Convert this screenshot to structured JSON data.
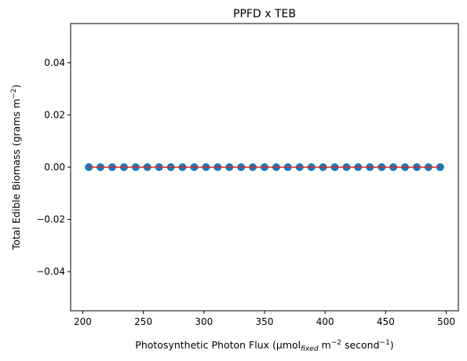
{
  "chart_data": {
    "type": "scatter",
    "title": "PPFD x TEB",
    "xlabel": {
      "pre": "Photosynthetic Photon Flux (µmol",
      "sub": "fixed",
      "mid": " m",
      "sup1": "−2",
      "mid2": " second",
      "sup2": "−1",
      "post": ")"
    },
    "ylabel": {
      "pre": "Total Edible Biomass (grams m",
      "sup": "−2",
      "post": ")"
    },
    "xlim": [
      190,
      510
    ],
    "ylim": [
      -0.055,
      0.055
    ],
    "xticks": [
      200,
      250,
      300,
      350,
      400,
      450,
      500
    ],
    "yticks": [
      -0.04,
      -0.02,
      0.0,
      0.02,
      0.04
    ],
    "ytick_labels": [
      "−0.04",
      "−0.02",
      "0.00",
      "0.02",
      "0.04"
    ],
    "grid": false,
    "series": [
      {
        "kind": "scatter",
        "color": "#1f77b4",
        "x": [
          205,
          214.6,
          224.3,
          234,
          243.7,
          253.3,
          263,
          272.7,
          282.3,
          292,
          301.7,
          311.3,
          321,
          330.7,
          340.3,
          350,
          359.7,
          369.3,
          379,
          388.7,
          398.3,
          408,
          417.7,
          427.3,
          437,
          446.7,
          456.3,
          466,
          475.7,
          485.3,
          495
        ],
        "y": [
          0,
          0,
          0,
          0,
          0,
          0,
          0,
          0,
          0,
          0,
          0,
          0,
          0,
          0,
          0,
          0,
          0,
          0,
          0,
          0,
          0,
          0,
          0,
          0,
          0,
          0,
          0,
          0,
          0,
          0,
          0
        ]
      },
      {
        "kind": "line",
        "color": "#d62728",
        "x": [
          205,
          495
        ],
        "y": [
          0,
          0
        ]
      }
    ]
  }
}
